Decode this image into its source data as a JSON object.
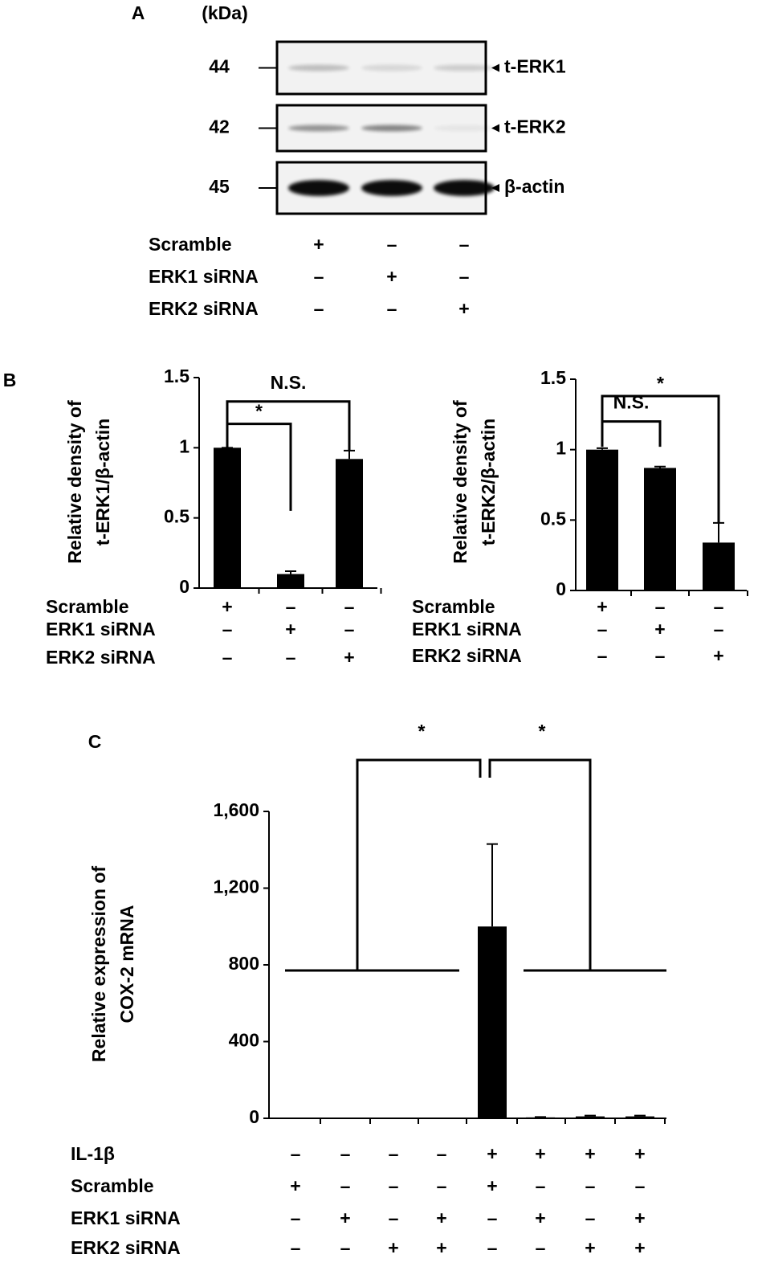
{
  "panels": [
    "A",
    "B",
    "C"
  ],
  "blot": {
    "unit": "(kDa)",
    "bands": [
      {
        "mw": 44,
        "label": "t-ERK1"
      },
      {
        "mw": 42,
        "label": "t-ERK2"
      },
      {
        "mw": 45,
        "label": "β-actin"
      }
    ],
    "conditions": [
      {
        "name": "Scramble",
        "signs": [
          "+",
          "–",
          "–"
        ]
      },
      {
        "name": "ERK1 siRNA",
        "signs": [
          "–",
          "+",
          "–"
        ]
      },
      {
        "name": "ERK2 siRNA",
        "signs": [
          "–",
          "–",
          "+"
        ]
      }
    ]
  },
  "chart_data": [
    {
      "type": "bar",
      "ylabel": [
        "Relative density of",
        "t-ERK1/β-actin"
      ],
      "values": [
        1,
        0.1,
        0.92
      ],
      "errors": [
        0,
        0.02,
        0.06
      ],
      "color": "#000000",
      "ylim": [
        0,
        1.5
      ],
      "yticks": [
        0,
        0.5,
        1,
        1.5
      ],
      "conditions": [
        {
          "name": "Scramble",
          "signs": [
            "+",
            "–",
            "–"
          ]
        },
        {
          "name": "ERK1 siRNA",
          "signs": [
            "–",
            "+",
            "–"
          ]
        },
        {
          "name": "ERK2 siRNA",
          "signs": [
            "–",
            "–",
            "+"
          ]
        }
      ],
      "annotations": [
        "N.S.",
        "*"
      ]
    },
    {
      "type": "bar",
      "ylabel": [
        "Relative density of",
        "t-ERK2/β-actin"
      ],
      "values": [
        1,
        0.87,
        0.34
      ],
      "errors": [
        0.01,
        0.01,
        0.14
      ],
      "color": "#000000",
      "ylim": [
        0,
        1.5
      ],
      "yticks": [
        0,
        0.5,
        1,
        1.5
      ],
      "conditions": [
        {
          "name": "Scramble",
          "signs": [
            "+",
            "–",
            "–"
          ]
        },
        {
          "name": "ERK1 siRNA",
          "signs": [
            "–",
            "+",
            "–"
          ]
        },
        {
          "name": "ERK2 siRNA",
          "signs": [
            "–",
            "–",
            "+"
          ]
        }
      ],
      "annotations": [
        "*",
        "N.S."
      ]
    },
    {
      "type": "bar",
      "ylabel": [
        "Relative expression of",
        "COX-2 mRNA"
      ],
      "values": [
        0,
        0,
        0,
        0,
        1000,
        5,
        10,
        10
      ],
      "errors": [
        0,
        0,
        0,
        0,
        430,
        2,
        4,
        4
      ],
      "color": "#000000",
      "ylim": [
        0,
        1600
      ],
      "yticks": [
        0,
        400,
        800,
        {
          "value": 1200,
          "label": "1,200"
        },
        {
          "value": 1600,
          "label": "1,600"
        }
      ],
      "conditions": [
        {
          "name": "IL-1β",
          "signs": [
            "–",
            "–",
            "–",
            "–",
            "+",
            "+",
            "+",
            "+"
          ]
        },
        {
          "name": "Scramble",
          "signs": [
            "+",
            "–",
            "–",
            "–",
            "+",
            "–",
            "–",
            "–"
          ]
        },
        {
          "name": "ERK1 siRNA",
          "signs": [
            "–",
            "+",
            "–",
            "+",
            "–",
            "+",
            "–",
            "+"
          ]
        },
        {
          "name": "ERK2 siRNA",
          "signs": [
            "–",
            "–",
            "+",
            "+",
            "–",
            "–",
            "+",
            "+"
          ]
        }
      ],
      "annotations": [
        "*",
        "*"
      ]
    }
  ]
}
